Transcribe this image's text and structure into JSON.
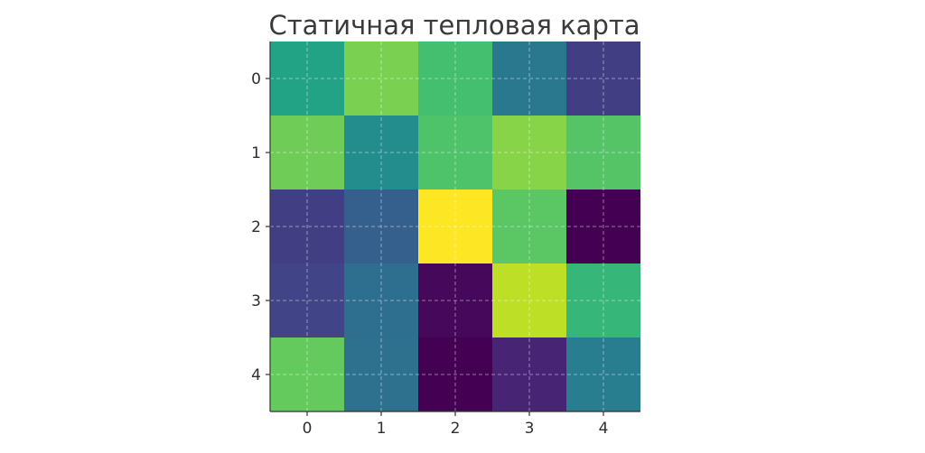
{
  "chart_data": {
    "type": "heatmap",
    "title": "Статичная тепловая карта",
    "xlabel": "",
    "ylabel": "",
    "colormap": "viridis",
    "x_categories": [
      "0",
      "1",
      "2",
      "3",
      "4"
    ],
    "y_categories": [
      "0",
      "1",
      "2",
      "3",
      "4"
    ],
    "values": [
      [
        0.58,
        0.8,
        0.7,
        0.4,
        0.18
      ],
      [
        0.78,
        0.48,
        0.72,
        0.82,
        0.73
      ],
      [
        0.18,
        0.3,
        1.0,
        0.74,
        0.0
      ],
      [
        0.2,
        0.36,
        0.02,
        0.9,
        0.66
      ],
      [
        0.76,
        0.37,
        0.0,
        0.1,
        0.42
      ]
    ],
    "value_range": [
      0,
      1
    ],
    "grid": true,
    "colorbar": false
  }
}
